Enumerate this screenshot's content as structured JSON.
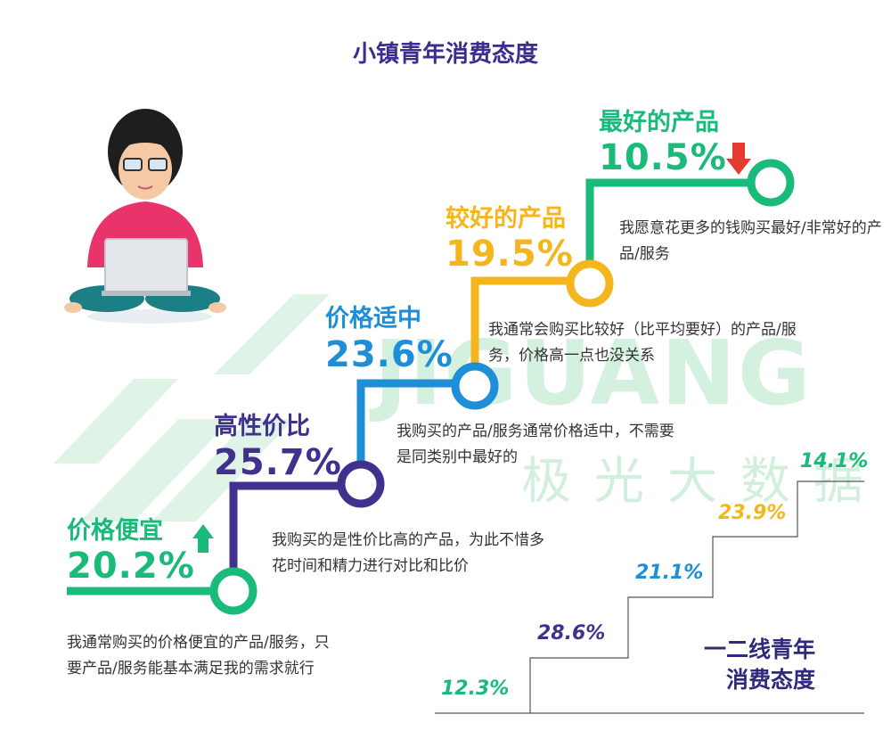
{
  "title": "小镇青年消费态度",
  "watermark": {
    "logo": "JIGUANG",
    "cn": "极光大数据"
  },
  "colors": {
    "cheap": "#1aba7a",
    "value": "#40318f",
    "mid": "#1e8ed6",
    "better": "#f5b51c",
    "best": "#1aba7a",
    "title": "#3a2d8f"
  },
  "chart_data": {
    "type": "bar",
    "title": "小镇青年消费态度",
    "categories": [
      "价格便宜",
      "高性价比",
      "价格适中",
      "较好的产品",
      "最好的产品"
    ],
    "series": [
      {
        "name": "小镇青年消费态度",
        "values": [
          20.2,
          25.7,
          23.6,
          19.5,
          10.5
        ]
      },
      {
        "name": "一二线青年消费态度",
        "values": [
          12.3,
          28.6,
          21.1,
          23.9,
          14.1
        ]
      }
    ],
    "unit": "%"
  },
  "steps": [
    {
      "name": "价格便宜",
      "pct": "20.2%",
      "arrow": "up",
      "desc": "我通常购买的价格便宜的产品/服务，只要产品/服务能基本满足我的需求就行"
    },
    {
      "name": "高性价比",
      "pct": "25.7%",
      "desc": "我购买的是性价比高的产品，为此不惜多花时间和精力进行对比和比价"
    },
    {
      "name": "价格适中",
      "pct": "23.6%",
      "desc": "我购买的产品/服务通常价格适中，不需要是同类别中最好的"
    },
    {
      "name": "较好的产品",
      "pct": "19.5%",
      "desc": "我通常会购买比较好（比平均要好）的产品/服务，价格高一点也没关系"
    },
    {
      "name": "最好的产品",
      "pct": "10.5%",
      "arrow": "down",
      "desc": "我愿意花更多的钱购买最好/非常好的产品/服务"
    }
  ],
  "right_chart": {
    "values": [
      "12.3%",
      "28.6%",
      "21.1%",
      "23.9%",
      "14.1%"
    ],
    "legend_line1": "一二线青年",
    "legend_line2": "消费态度"
  }
}
